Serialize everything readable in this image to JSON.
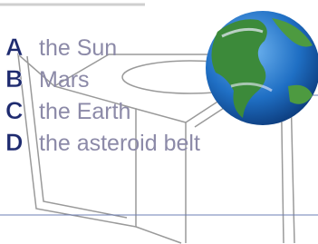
{
  "options": [
    {
      "letter": "A",
      "text": "the Sun"
    },
    {
      "letter": "B",
      "text": "Mars"
    },
    {
      "letter": "C",
      "text": "the Earth"
    },
    {
      "letter": "D",
      "text": "the asteroid belt"
    }
  ]
}
